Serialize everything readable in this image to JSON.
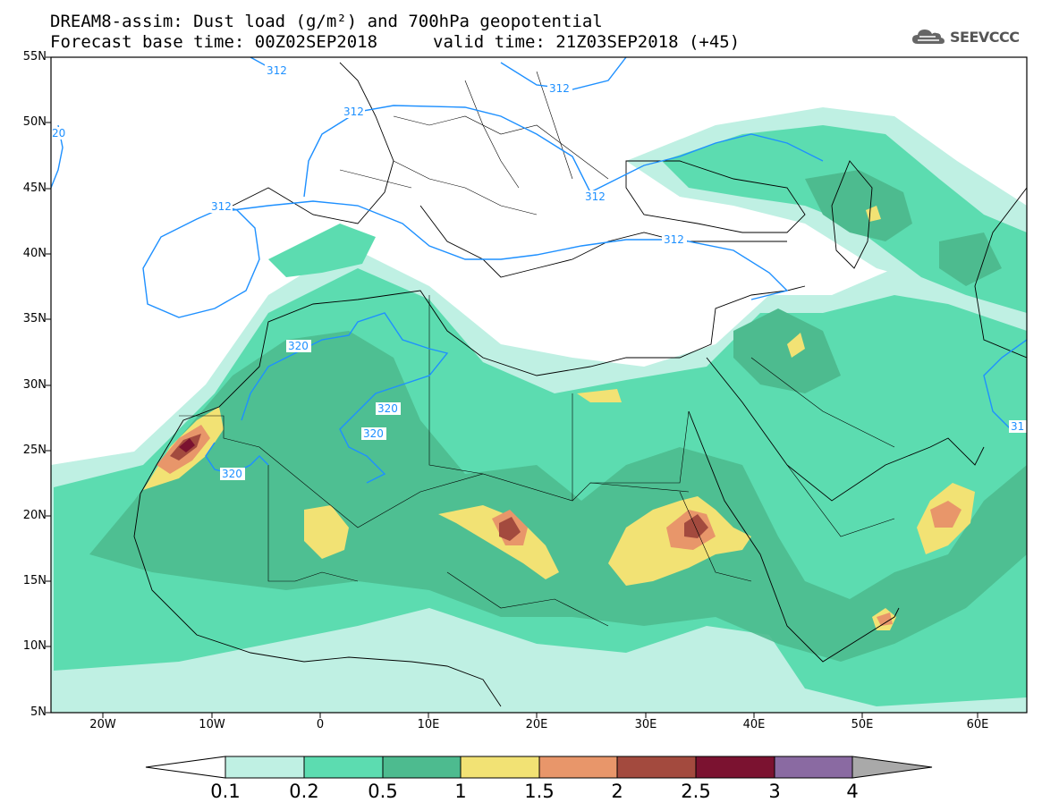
{
  "title": {
    "line1": "DREAM8-assim: Dust load (g/m²) and 700hPa geopotential",
    "line2a": "Forecast base time: 00Z02SEP2018",
    "line2b": "valid time: 21Z03SEP2018 (+45)"
  },
  "logo": {
    "text": "SEEVCCC",
    "icon": "cloud-icon"
  },
  "axes": {
    "lat_labels": [
      "55N",
      "50N",
      "45N",
      "40N",
      "35N",
      "30N",
      "25N",
      "20N",
      "15N",
      "10N",
      "5N"
    ],
    "lon_labels": [
      "20W",
      "10W",
      "0",
      "10E",
      "20E",
      "30E",
      "40E",
      "50E",
      "60E"
    ],
    "lon_range": [
      -25,
      65
    ],
    "lat_range": [
      5,
      55
    ]
  },
  "contours": {
    "labels": [
      "312",
      "312",
      "312",
      "312",
      "312",
      "312",
      "320",
      "320",
      "320",
      "320",
      "20",
      "31"
    ],
    "color": "#1e90ff"
  },
  "colorbar": {
    "levels": [
      "0.1",
      "0.2",
      "0.5",
      "1",
      "1.5",
      "2",
      "2.5",
      "3",
      "4"
    ],
    "colors": [
      "#bff0e3",
      "#5cdcb0",
      "#4dbb8f",
      "#f2e274",
      "#e8966a",
      "#a34a3e",
      "#7b1230",
      "#8a6aa2"
    ],
    "under_color": "#ffffff",
    "over_color": "#a9a9a9"
  }
}
